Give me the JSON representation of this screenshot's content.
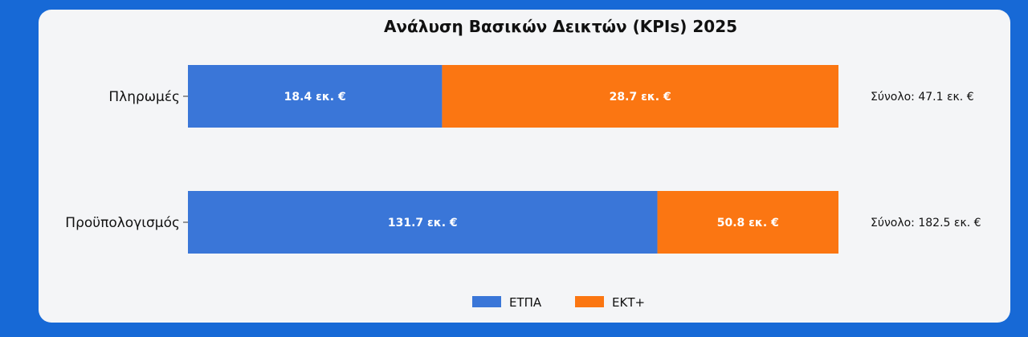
{
  "colors": {
    "page_bg": "#1769d6",
    "card_bg": "#f4f5f7",
    "etpa": "#3a76d8",
    "ekt": "#fb7612"
  },
  "chart_data": {
    "type": "bar",
    "orientation": "horizontal",
    "stacked": true,
    "title": "Ανάλυση Βασικών Δεικτών (KPIs) 2025",
    "categories": [
      "Πληρωμές",
      "Προϋπολογισμός"
    ],
    "series": [
      {
        "name": "ΕΤΠΑ",
        "color": "#3a76d8",
        "values": [
          18.4,
          131.7
        ],
        "labels": [
          "18.4 εκ. €",
          "131.7 εκ. €"
        ]
      },
      {
        "name": "ΕΚΤ+",
        "color": "#fb7612",
        "values": [
          28.7,
          50.8
        ],
        "labels": [
          "28.7 εκ. €",
          "50.8 εκ. €"
        ]
      }
    ],
    "totals": [
      "Σύνολο: 47.1 εκ. €",
      "Σύνολο: 182.5 εκ. €"
    ],
    "normalized": true,
    "legend": "bottom-center"
  }
}
